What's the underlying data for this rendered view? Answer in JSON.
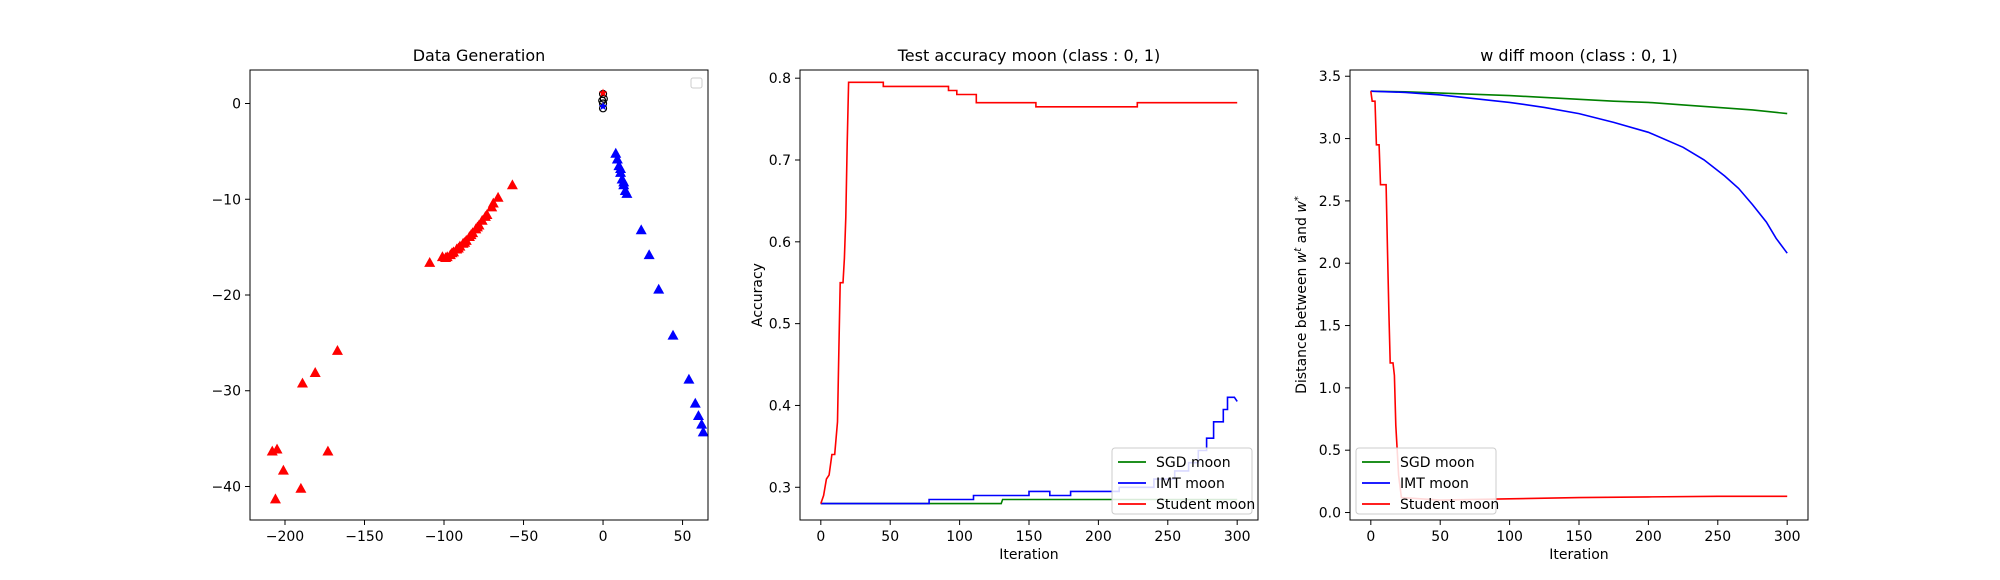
{
  "chart_data": [
    {
      "type": "scatter",
      "title": "Data Generation",
      "xlabel": "",
      "ylabel": "",
      "xlim": [
        -222,
        66
      ],
      "ylim": [
        -43.5,
        3.5
      ],
      "xticks": [
        -200,
        -150,
        -100,
        -50,
        0,
        50
      ],
      "yticks": [
        -40,
        -30,
        -20,
        -10,
        0
      ],
      "xtick_labels": [
        "−200",
        "−150",
        "−100",
        "−50",
        "0",
        "50"
      ],
      "ytick_labels": [
        "−40",
        "−30",
        "−20",
        "−10",
        "0"
      ],
      "legend": {
        "placement": "top-right",
        "entries": []
      },
      "series": [
        {
          "color": "#ff0000",
          "marker": "triangle",
          "points": [
            [
              -206,
              -41.3
            ],
            [
              -208,
              -36.3
            ],
            [
              -205,
              -36.1
            ],
            [
              -201,
              -38.3
            ],
            [
              -190,
              -40.2
            ],
            [
              -189,
              -29.2
            ],
            [
              -181,
              -28.1
            ],
            [
              -173,
              -36.3
            ],
            [
              -167,
              -25.8
            ],
            [
              -57,
              -8.5
            ],
            [
              -66,
              -9.8
            ],
            [
              -70,
              -10.8
            ],
            [
              -73,
              -11.6
            ],
            [
              -76,
              -12.2
            ],
            [
              -78,
              -12.7
            ],
            [
              -80,
              -13.1
            ],
            [
              -82,
              -13.5
            ],
            [
              -84,
              -13.9
            ],
            [
              -86,
              -14.3
            ],
            [
              -88,
              -14.6
            ],
            [
              -90,
              -14.9
            ],
            [
              -92,
              -15.2
            ],
            [
              -94,
              -15.5
            ],
            [
              -96,
              -15.8
            ],
            [
              -99,
              -16.1
            ],
            [
              -101,
              -16.0
            ],
            [
              -109,
              -16.6
            ],
            [
              -69,
              -10.4
            ],
            [
              -74,
              -11.8
            ],
            [
              -79,
              -12.9
            ],
            [
              -83,
              -13.7
            ],
            [
              -87,
              -14.5
            ],
            [
              -91,
              -15.1
            ],
            [
              -95,
              -15.6
            ],
            [
              -98,
              -16.0
            ]
          ]
        },
        {
          "color": "#0000ff",
          "marker": "triangle",
          "points": [
            [
              8,
              -5.2
            ],
            [
              9,
              -5.8
            ],
            [
              10,
              -6.5
            ],
            [
              11,
              -7.2
            ],
            [
              12,
              -7.9
            ],
            [
              13,
              -8.5
            ],
            [
              14,
              -9.1
            ],
            [
              15,
              -9.4
            ],
            [
              11,
              -6.8
            ],
            [
              13,
              -8.2
            ],
            [
              24,
              -13.2
            ],
            [
              29,
              -15.8
            ],
            [
              35,
              -19.4
            ],
            [
              44,
              -24.2
            ],
            [
              54,
              -28.8
            ],
            [
              58,
              -31.3
            ],
            [
              60,
              -32.6
            ],
            [
              62,
              -33.5
            ],
            [
              63,
              -34.3
            ]
          ]
        },
        {
          "color": "#000000",
          "marker": "circle-cluster",
          "points": [
            [
              0,
              0
            ],
            [
              0,
              1
            ],
            [
              0,
              -0.5
            ],
            [
              0.5,
              0.5
            ],
            [
              -0.5,
              0.3
            ]
          ]
        },
        {
          "color": "#ff0000",
          "marker": "star",
          "points": [
            [
              0,
              1.1
            ]
          ]
        },
        {
          "color": "#0000ff",
          "marker": "star",
          "points": [
            [
              0,
              -0.3
            ]
          ]
        }
      ]
    },
    {
      "type": "line",
      "title": "Test accuracy moon (class : 0, 1)",
      "xlabel": "Iteration",
      "ylabel": "Accuracy",
      "xlim": [
        -15,
        315
      ],
      "ylim": [
        0.26,
        0.81
      ],
      "xticks": [
        0,
        50,
        100,
        150,
        200,
        250,
        300
      ],
      "yticks": [
        0.3,
        0.4,
        0.5,
        0.6,
        0.7,
        0.8
      ],
      "xtick_labels": [
        "0",
        "50",
        "100",
        "150",
        "200",
        "250",
        "300"
      ],
      "ytick_labels": [
        "0.3",
        "0.4",
        "0.5",
        "0.6",
        "0.7",
        "0.8"
      ],
      "legend": {
        "placement": "lower-right",
        "entries": [
          "SGD moon",
          "IMT moon",
          "Student moon"
        ]
      },
      "series": [
        {
          "name": "SGD moon",
          "color": "#008000",
          "points": [
            [
              0,
              0.28
            ],
            [
              130,
              0.28
            ],
            [
              131,
              0.285
            ],
            [
              300,
              0.285
            ]
          ]
        },
        {
          "name": "IMT moon",
          "color": "#0000ff",
          "points": [
            [
              0,
              0.28
            ],
            [
              78,
              0.28
            ],
            [
              78,
              0.285
            ],
            [
              110,
              0.285
            ],
            [
              110,
              0.29
            ],
            [
              150,
              0.29
            ],
            [
              150,
              0.295
            ],
            [
              165,
              0.295
            ],
            [
              165,
              0.29
            ],
            [
              180,
              0.29
            ],
            [
              180,
              0.295
            ],
            [
              215,
              0.295
            ],
            [
              215,
              0.3
            ],
            [
              240,
              0.3
            ],
            [
              240,
              0.31
            ],
            [
              255,
              0.31
            ],
            [
              255,
              0.32
            ],
            [
              265,
              0.32
            ],
            [
              265,
              0.33
            ],
            [
              272,
              0.33
            ],
            [
              272,
              0.345
            ],
            [
              278,
              0.345
            ],
            [
              278,
              0.36
            ],
            [
              283,
              0.36
            ],
            [
              283,
              0.38
            ],
            [
              290,
              0.38
            ],
            [
              290,
              0.395
            ],
            [
              293,
              0.395
            ],
            [
              293,
              0.41
            ],
            [
              298,
              0.41
            ],
            [
              300,
              0.405
            ]
          ]
        },
        {
          "name": "Student moon",
          "color": "#ff0000",
          "points": [
            [
              0,
              0.28
            ],
            [
              2,
              0.29
            ],
            [
              4,
              0.31
            ],
            [
              6,
              0.315
            ],
            [
              8,
              0.34
            ],
            [
              10,
              0.34
            ],
            [
              12,
              0.38
            ],
            [
              13,
              0.47
            ],
            [
              14,
              0.55
            ],
            [
              16,
              0.55
            ],
            [
              17,
              0.58
            ],
            [
              18,
              0.63
            ],
            [
              19,
              0.72
            ],
            [
              20,
              0.795
            ],
            [
              45,
              0.795
            ],
            [
              45,
              0.79
            ],
            [
              92,
              0.79
            ],
            [
              92,
              0.785
            ],
            [
              98,
              0.785
            ],
            [
              98,
              0.78
            ],
            [
              112,
              0.78
            ],
            [
              112,
              0.77
            ],
            [
              155,
              0.77
            ],
            [
              155,
              0.765
            ],
            [
              228,
              0.765
            ],
            [
              228,
              0.77
            ],
            [
              300,
              0.77
            ]
          ]
        }
      ]
    },
    {
      "type": "line",
      "title": "w diff moon (class : 0, 1)",
      "xlabel": "Iteration",
      "ylabel": "Distance between $w^t$ and $w^*$",
      "ylabel_parts": [
        "Distance between ",
        "w",
        "t",
        " and ",
        "w",
        "*"
      ],
      "xlim": [
        -15,
        315
      ],
      "ylim": [
        -0.06,
        3.55
      ],
      "xticks": [
        0,
        50,
        100,
        150,
        200,
        250,
        300
      ],
      "yticks": [
        0.0,
        0.5,
        1.0,
        1.5,
        2.0,
        2.5,
        3.0,
        3.5
      ],
      "xtick_labels": [
        "0",
        "50",
        "100",
        "150",
        "200",
        "250",
        "300"
      ],
      "ytick_labels": [
        "0.0",
        "0.5",
        "1.0",
        "1.5",
        "2.0",
        "2.5",
        "3.0",
        "3.5"
      ],
      "legend": {
        "placement": "lower-left",
        "entries": [
          "SGD moon",
          "IMT moon",
          "Student moon"
        ]
      },
      "series": [
        {
          "name": "SGD moon",
          "color": "#008000",
          "points": [
            [
              0,
              3.38
            ],
            [
              25,
              3.375
            ],
            [
              50,
              3.365
            ],
            [
              75,
              3.355
            ],
            [
              100,
              3.345
            ],
            [
              125,
              3.33
            ],
            [
              150,
              3.315
            ],
            [
              175,
              3.3
            ],
            [
              200,
              3.29
            ],
            [
              225,
              3.27
            ],
            [
              250,
              3.25
            ],
            [
              275,
              3.23
            ],
            [
              300,
              3.2
            ]
          ]
        },
        {
          "name": "IMT moon",
          "color": "#0000ff",
          "points": [
            [
              0,
              3.38
            ],
            [
              25,
              3.37
            ],
            [
              50,
              3.35
            ],
            [
              75,
              3.32
            ],
            [
              100,
              3.29
            ],
            [
              125,
              3.25
            ],
            [
              150,
              3.2
            ],
            [
              175,
              3.13
            ],
            [
              200,
              3.05
            ],
            [
              225,
              2.93
            ],
            [
              240,
              2.83
            ],
            [
              255,
              2.7
            ],
            [
              265,
              2.6
            ],
            [
              275,
              2.47
            ],
            [
              285,
              2.33
            ],
            [
              292,
              2.2
            ],
            [
              300,
              2.08
            ]
          ]
        },
        {
          "name": "Student moon",
          "color": "#ff0000",
          "points": [
            [
              0,
              3.38
            ],
            [
              1,
              3.3
            ],
            [
              2,
              3.3
            ],
            [
              3,
              3.3
            ],
            [
              4,
              2.95
            ],
            [
              6,
              2.95
            ],
            [
              7,
              2.63
            ],
            [
              11,
              2.63
            ],
            [
              12,
              2.1
            ],
            [
              13,
              1.6
            ],
            [
              14,
              1.2
            ],
            [
              16,
              1.2
            ],
            [
              17,
              1.1
            ],
            [
              18,
              0.7
            ],
            [
              20,
              0.3
            ],
            [
              22,
              0.12
            ],
            [
              50,
              0.1
            ],
            [
              100,
              0.11
            ],
            [
              150,
              0.12
            ],
            [
              200,
              0.125
            ],
            [
              250,
              0.13
            ],
            [
              300,
              0.13
            ]
          ]
        }
      ]
    }
  ]
}
